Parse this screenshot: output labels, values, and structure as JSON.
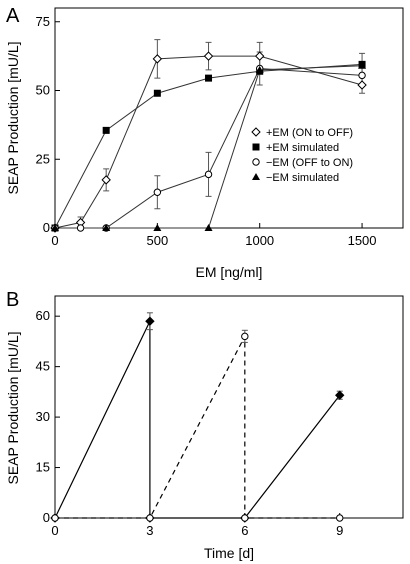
{
  "chart_data": [
    {
      "type": "line",
      "panel_label": "A",
      "xlabel": "EM [ng/ml]",
      "ylabel": "SEAP Production  [mU/L]",
      "xlim": [
        0,
        1700
      ],
      "ylim": [
        0,
        80
      ],
      "xticks": [
        0,
        500,
        1000,
        1500
      ],
      "yticks": [
        0,
        25,
        50,
        75
      ],
      "legend_position": "center-right",
      "series": [
        {
          "name": "+EM (ON to OFF)",
          "marker": "open-diamond",
          "line": true,
          "x": [
            0,
            125,
            250,
            500,
            750,
            1000,
            1500
          ],
          "y": [
            0,
            2,
            17.5,
            61.5,
            62.5,
            62.5,
            52
          ],
          "err": [
            0,
            2,
            4,
            7,
            5,
            5,
            3
          ]
        },
        {
          "name": "+EM simulated",
          "marker": "filled-square",
          "line": true,
          "x": [
            0,
            250,
            500,
            750,
            1000,
            1500
          ],
          "y": [
            0,
            35.5,
            49,
            54.5,
            57,
            59.5
          ],
          "err": [
            0,
            0,
            0,
            0,
            0,
            4
          ]
        },
        {
          "name": "−EM (OFF to ON)",
          "marker": "open-circle",
          "line": true,
          "x": [
            0,
            125,
            250,
            500,
            750,
            1000,
            1500
          ],
          "y": [
            0,
            0,
            0,
            13,
            19.5,
            58,
            55.5
          ],
          "err": [
            0,
            0,
            0,
            6,
            8,
            6,
            4
          ]
        },
        {
          "name": "−EM simulated",
          "marker": "filled-triangle",
          "line": true,
          "x": [
            0,
            250,
            500,
            750,
            1000,
            1500
          ],
          "y": [
            0,
            0,
            0,
            0,
            57.5,
            59
          ],
          "err": [
            0,
            0,
            0,
            0,
            0,
            0
          ]
        }
      ]
    },
    {
      "type": "line",
      "panel_label": "B",
      "xlabel": "Time [d]",
      "ylabel": "SEAP Production  [mU/L]",
      "xlim": [
        0,
        11
      ],
      "ylim": [
        0,
        66
      ],
      "xticks": [
        0,
        3,
        6,
        9
      ],
      "yticks": [
        0,
        15,
        30,
        45,
        60
      ],
      "series": [
        {
          "style": "solid",
          "marker": "filled-diamond",
          "x": [
            0,
            3,
            3,
            6,
            9
          ],
          "y": [
            0,
            58.5,
            0,
            0,
            36.5
          ],
          "err": [
            0,
            2.5,
            0,
            0,
            1.2
          ]
        },
        {
          "style": "dashed",
          "marker": "open-circle",
          "x": [
            0,
            3,
            6,
            6,
            9
          ],
          "y": [
            0,
            0,
            54,
            0,
            0
          ],
          "err": [
            0,
            0,
            1.8,
            0,
            0
          ]
        }
      ]
    }
  ]
}
